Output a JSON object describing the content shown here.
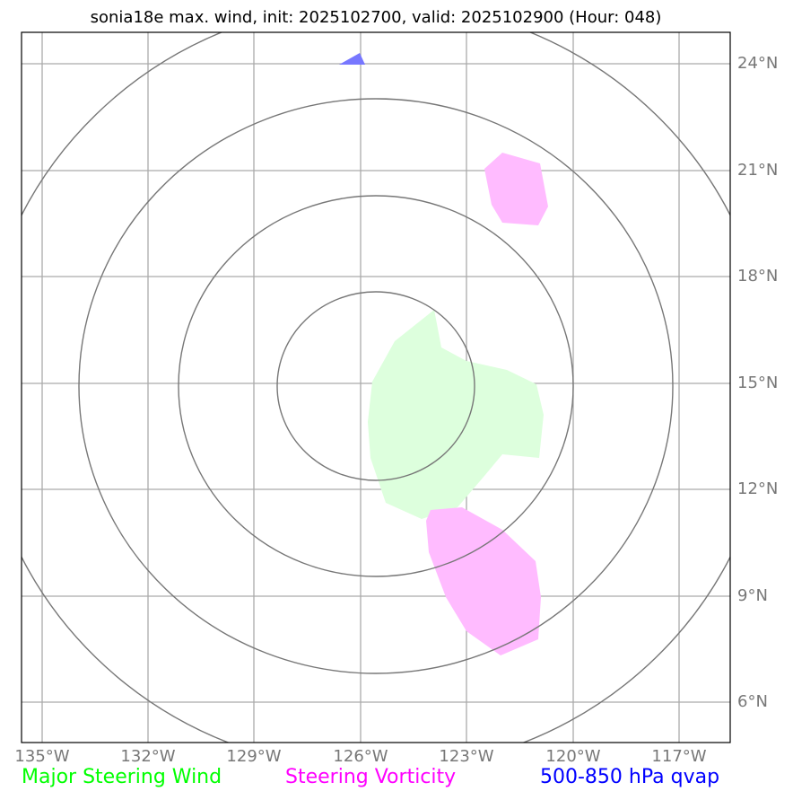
{
  "title": "sonia18e max. wind, init: 2025102700, valid: 2025102900 (Hour: 048)",
  "lat_labels": [
    "24°N",
    "21°N",
    "18°N",
    "15°N",
    "12°N",
    "9°N",
    "6°N"
  ],
  "lon_labels": [
    "135°W",
    "132°W",
    "129°W",
    "126°W",
    "123°W",
    "120°W",
    "117°W"
  ],
  "legend": [
    {
      "label": "Major Steering Wind",
      "color": "#00ff00"
    },
    {
      "label": "Steering Vorticity",
      "color": "#ff00ff"
    },
    {
      "label": "500-850 hPa qvap",
      "color": "#0000ff"
    }
  ]
}
